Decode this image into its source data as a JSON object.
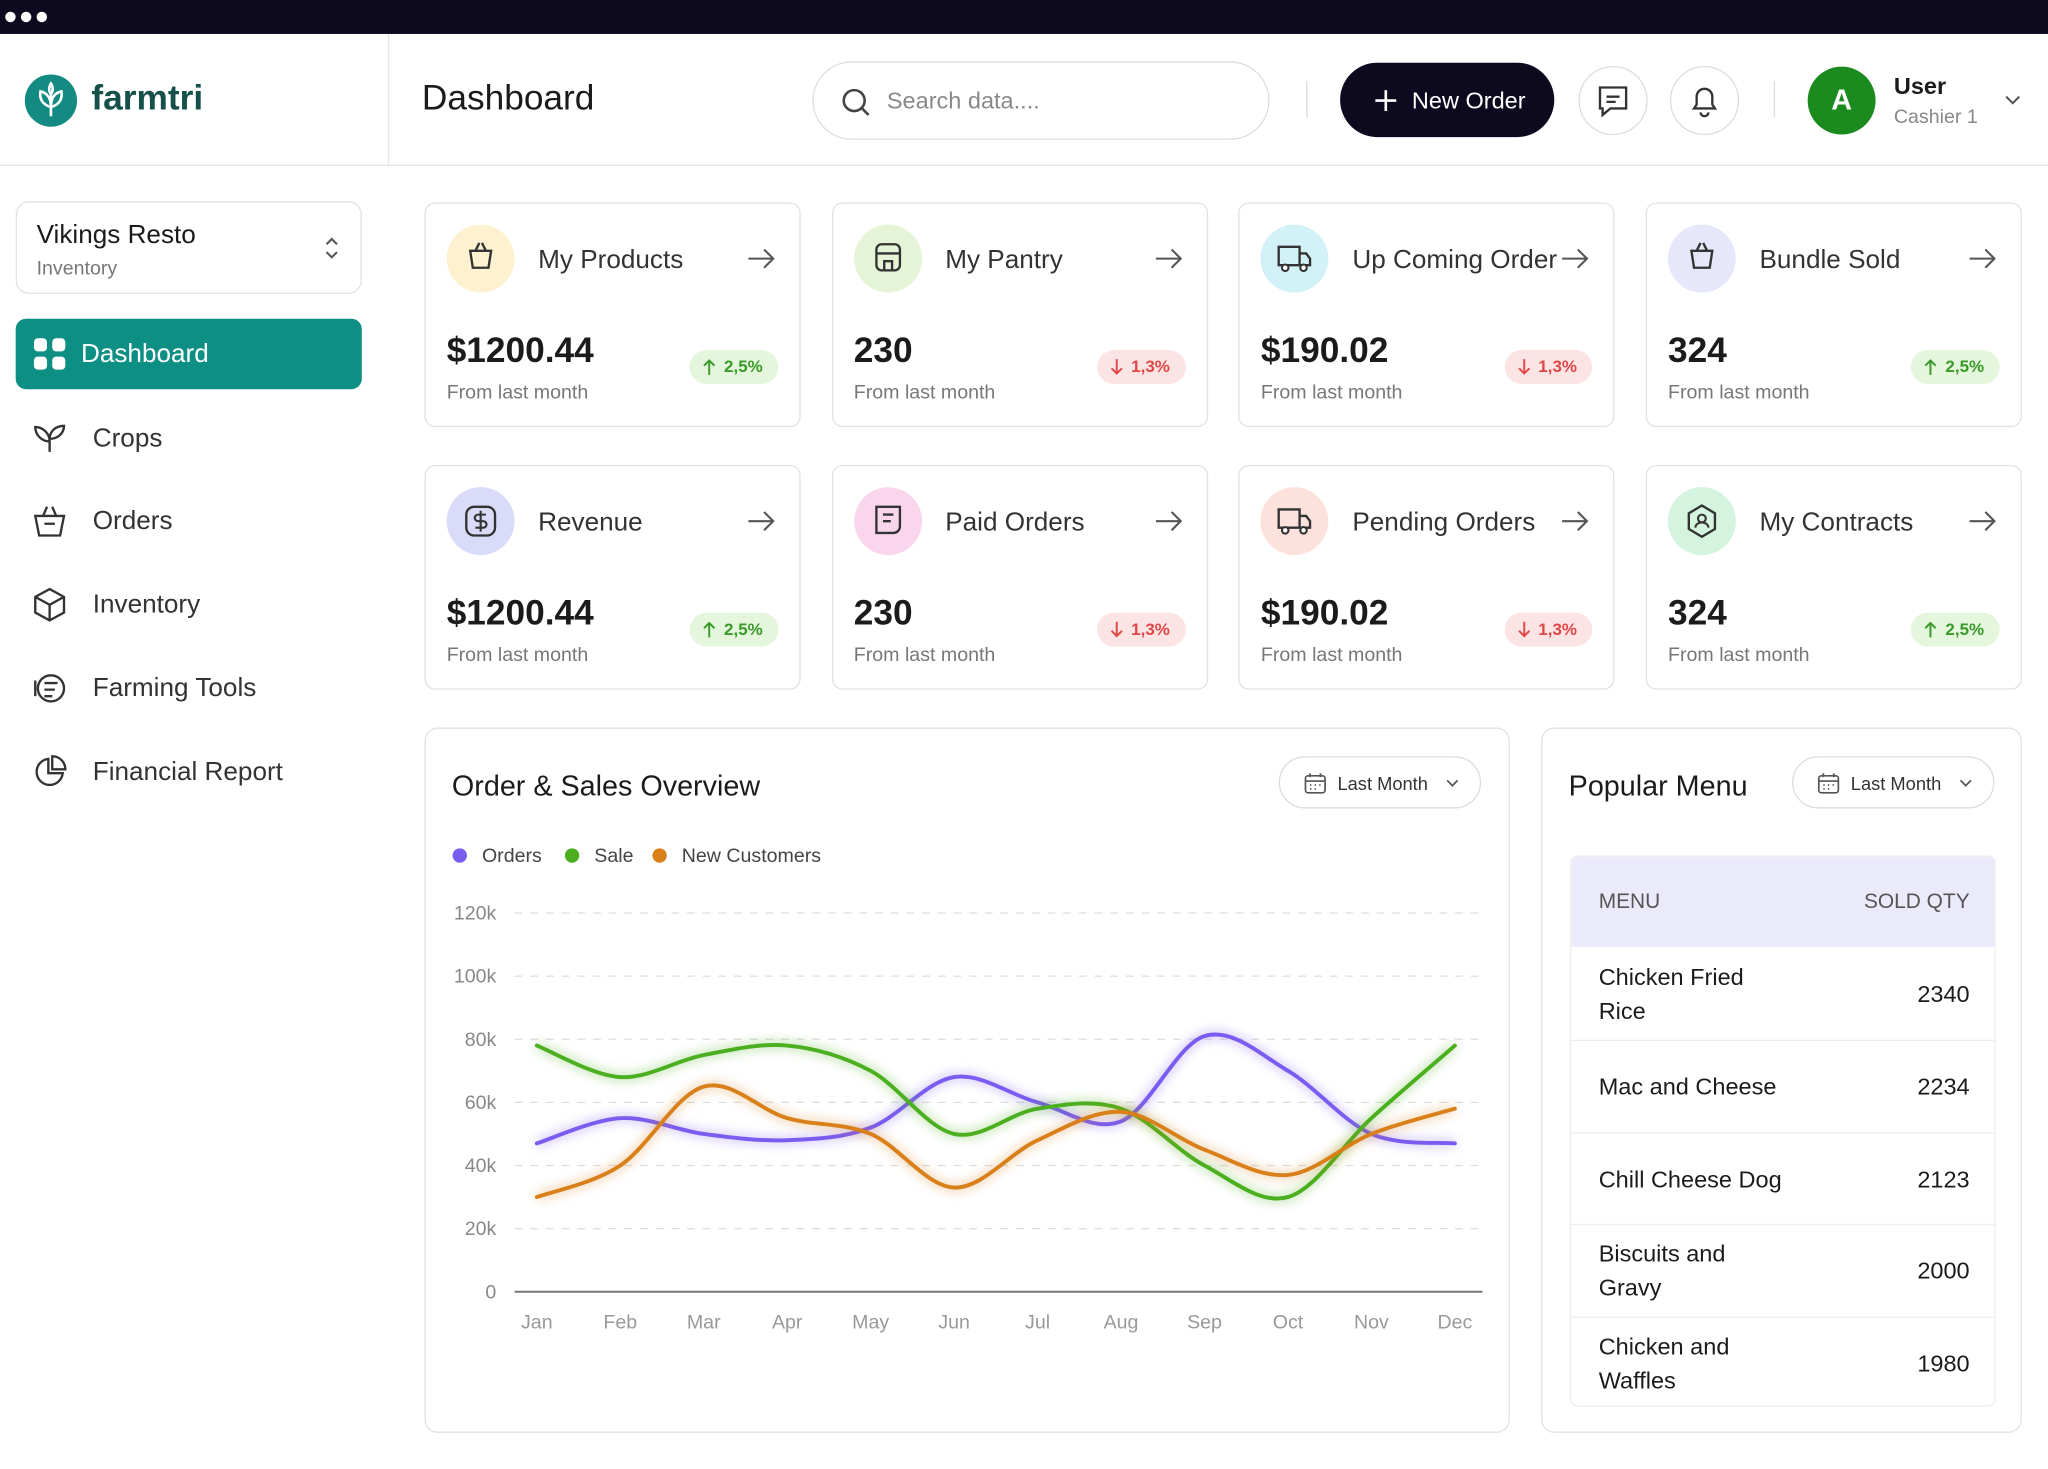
{
  "brand": "farmtri",
  "store": {
    "name": "Vikings Resto",
    "subtitle": "Inventory"
  },
  "nav": [
    {
      "label": "Dashboard",
      "active": true
    },
    {
      "label": "Crops"
    },
    {
      "label": "Orders"
    },
    {
      "label": "Inventory"
    },
    {
      "label": "Farming Tools"
    },
    {
      "label": "Financial Report"
    }
  ],
  "header": {
    "title": "Dashboard",
    "search_placeholder": "Search data....",
    "button": "New Order",
    "user": {
      "initial": "A",
      "name": "User",
      "role": "Cashier 1"
    }
  },
  "cards": [
    {
      "title": "My Products",
      "value": "$1200.44",
      "change": "2,5%",
      "direction": "up",
      "note": "From last month"
    },
    {
      "title": "My Pantry",
      "value": "230",
      "change": "1,3%",
      "direction": "down",
      "note": "From last month"
    },
    {
      "title": "Up Coming Order",
      "value": "$190.02",
      "change": "1,3%",
      "direction": "down",
      "note": "From last month"
    },
    {
      "title": "Bundle Sold",
      "value": "324",
      "change": "2,5%",
      "direction": "up",
      "note": "From last month"
    },
    {
      "title": "Revenue",
      "value": "$1200.44",
      "change": "2,5%",
      "direction": "up",
      "note": "From last month"
    },
    {
      "title": "Paid Orders",
      "value": "230",
      "change": "1,3%",
      "direction": "down",
      "note": "From last month"
    },
    {
      "title": "Pending Orders",
      "value": "$190.02",
      "change": "1,3%",
      "direction": "down",
      "note": "From last month"
    },
    {
      "title": "My Contracts",
      "value": "324",
      "change": "2,5%",
      "direction": "up",
      "note": "From last month"
    }
  ],
  "chart_data": {
    "type": "line",
    "title": "Order & Sales Overview",
    "filter": "Last Month",
    "categories": [
      "Jan",
      "Feb",
      "Mar",
      "Apr",
      "May",
      "Jun",
      "Jul",
      "Aug",
      "Sep",
      "Oct",
      "Nov",
      "Dec"
    ],
    "series": [
      {
        "name": "Orders",
        "color": "#7b5cf0",
        "values": [
          47000,
          55000,
          50000,
          48000,
          52000,
          68000,
          60000,
          54000,
          81000,
          70000,
          50000,
          47000
        ]
      },
      {
        "name": "Sale",
        "color": "#4caf1f",
        "values": [
          78000,
          68000,
          75000,
          78000,
          70000,
          50000,
          58000,
          58000,
          40000,
          30000,
          55000,
          78000
        ]
      },
      {
        "name": "New Customers",
        "color": "#d9801a",
        "values": [
          30000,
          40000,
          65000,
          55000,
          50000,
          33000,
          48000,
          57000,
          45000,
          37000,
          50000,
          58000
        ]
      }
    ],
    "ylim": [
      0,
      120000
    ],
    "yticks": [
      0,
      {
        "value": 20000,
        "label": "20k"
      },
      {
        "value": 40000,
        "label": "40k"
      },
      {
        "value": 60000,
        "label": "60k"
      },
      {
        "value": 80000,
        "label": "80k"
      },
      {
        "value": 100000,
        "label": "100k"
      },
      {
        "value": 120000,
        "label": "120k"
      }
    ],
    "grid": true
  },
  "popular_menu": {
    "title": "Popular Menu",
    "filter": "Last Month",
    "columns": [
      "MENU",
      "SOLD QTY"
    ],
    "rows": [
      [
        "Chicken Fried Rice",
        2340
      ],
      [
        "Mac and Cheese",
        2234
      ],
      [
        "Chill Cheese Dog",
        2123
      ],
      [
        "Biscuits and Gravy",
        2000
      ],
      [
        "Chicken and Waffles",
        1980
      ]
    ]
  }
}
